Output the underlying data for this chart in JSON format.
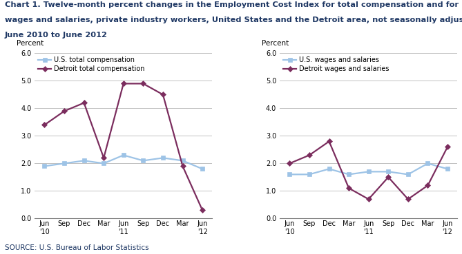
{
  "title_line1": "Chart 1. Twelve-month percent changes in the Employment Cost Index for total compensation and for",
  "title_line2": "wages and salaries, private industry workers, United States and the Detroit area, not seasonally adjusted,",
  "title_line3": "June 2010 to June 2012",
  "source": "SOURCE: U.S. Bureau of Labor Statistics",
  "x_labels": [
    "Jun\n'10",
    "Sep",
    "Dec",
    "Mar",
    "Jun\n'11",
    "Sep",
    "Dec",
    "Mar",
    "Jun\n'12"
  ],
  "ylim": [
    0.0,
    6.0
  ],
  "yticks": [
    0.0,
    1.0,
    2.0,
    3.0,
    4.0,
    5.0,
    6.0
  ],
  "ylabel": "Percent",
  "left_chart": {
    "us_label": "U.S. total compensation",
    "detroit_label": "Detroit total compensation",
    "us_values": [
      1.9,
      2.0,
      2.1,
      2.0,
      2.3,
      2.1,
      2.2,
      2.1,
      1.8
    ],
    "detroit_values": [
      3.4,
      3.9,
      4.2,
      2.2,
      4.9,
      4.9,
      4.5,
      1.9,
      0.3
    ]
  },
  "right_chart": {
    "us_label": "U.S. wages and salaries",
    "detroit_label": "Detroit wages and salaries",
    "us_values": [
      1.6,
      1.6,
      1.8,
      1.6,
      1.7,
      1.7,
      1.6,
      2.0,
      1.8
    ],
    "detroit_values": [
      2.0,
      2.3,
      2.8,
      1.1,
      0.7,
      1.5,
      0.7,
      1.2,
      2.6
    ]
  },
  "us_color": "#9DC3E6",
  "detroit_color": "#7B2D5E",
  "us_marker": "s",
  "detroit_marker": "D",
  "line_width": 1.6,
  "marker_size": 4,
  "grid_color": "#C0C0C0",
  "title_fontsize": 8.2,
  "label_fontsize": 7.5,
  "tick_fontsize": 7.0,
  "legend_fontsize": 7.0,
  "source_fontsize": 7.5
}
